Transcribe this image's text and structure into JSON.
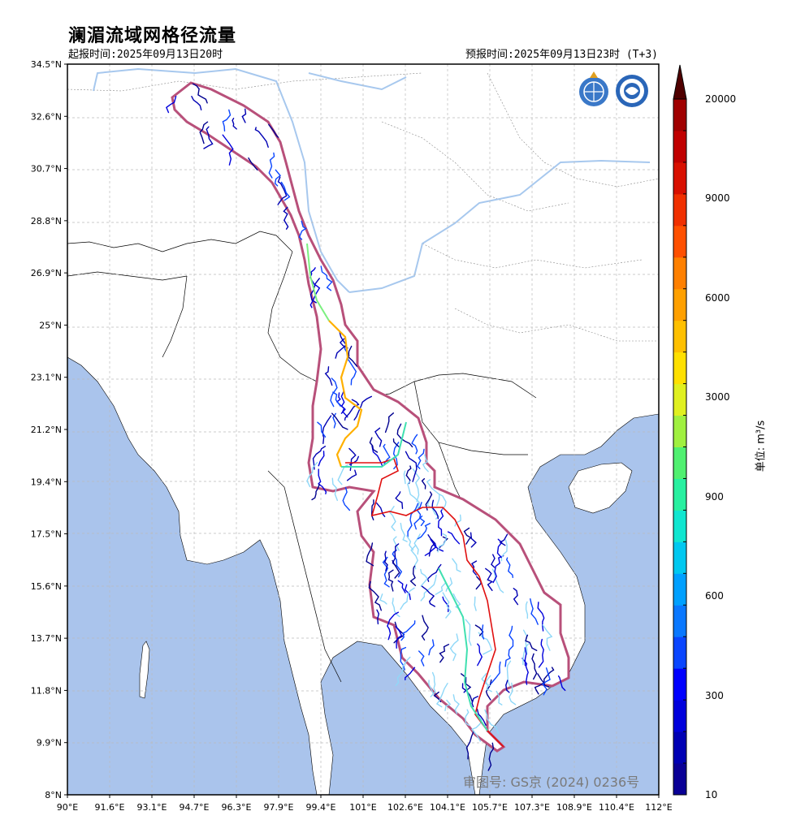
{
  "header": {
    "title": "澜湄流域网格径流量",
    "issue_time": "起报时间:2025年09月13日20时",
    "forecast_time": "预报时间:2025年09月13日23时 (T+3)"
  },
  "map": {
    "lon_ticks": [
      "90°E",
      "91.6°E",
      "93.1°E",
      "94.7°E",
      "96.3°E",
      "97.9°E",
      "99.4°E",
      "101°E",
      "102.6°E",
      "104.1°E",
      "105.7°E",
      "107.3°E",
      "108.9°E",
      "110.4°E",
      "112°E"
    ],
    "lat_ticks": [
      "34.5°N",
      "32.6°N",
      "30.7°N",
      "28.8°N",
      "26.9°N",
      "25°N",
      "23.1°N",
      "21.2°N",
      "19.4°N",
      "17.5°N",
      "15.6°N",
      "13.7°N",
      "11.8°N",
      "9.9°N",
      "8°N"
    ],
    "watermark": "审图号: GS京 (2024) 0236号",
    "colors": {
      "sea": "#aac4ec",
      "river": "#a7c8ee",
      "basin_outline": "#b8507a",
      "sub_basin": "#e01010"
    }
  },
  "colorbar": {
    "labels": [
      "20000",
      "9000",
      "6000",
      "3000",
      "900",
      "600",
      "300",
      "10"
    ],
    "unit": "单位: m³/s",
    "colors": [
      "#0a0096",
      "#0000b4",
      "#0000dc",
      "#0000ff",
      "#0a46ff",
      "#0a78ff",
      "#00a0ff",
      "#00c8f0",
      "#10e6d0",
      "#28f0a0",
      "#50f070",
      "#a0f040",
      "#e0f020",
      "#ffe000",
      "#ffc000",
      "#ffa000",
      "#ff8000",
      "#ff5000",
      "#f03000",
      "#d81000",
      "#c00000",
      "#a00000"
    ]
  }
}
